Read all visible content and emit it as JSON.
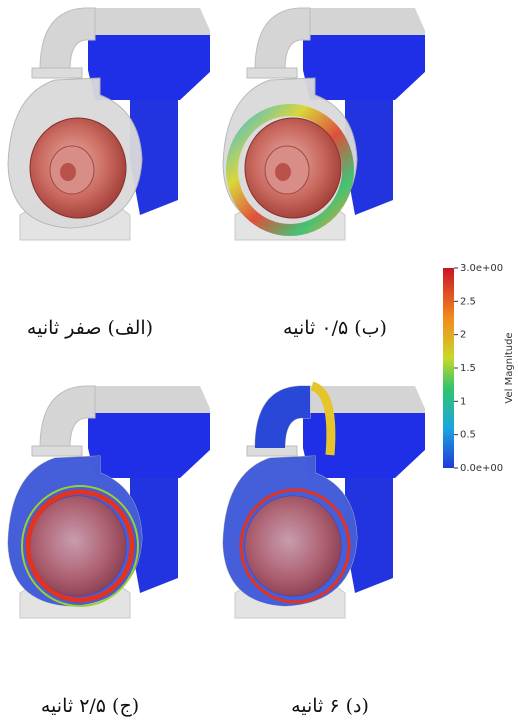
{
  "panels": [
    {
      "caption": "(الف) صفر ثانیه"
    },
    {
      "caption": "(ب) ۰/۵ ثانیه"
    },
    {
      "caption": "(ج) ۲/۵ ثانیه"
    },
    {
      "caption": "(د) ۶ ثانیه"
    }
  ],
  "colorbar": {
    "label": "Vel Magnitude",
    "lim": [
      0,
      3
    ],
    "ticks": [
      {
        "value": 3,
        "label": "3.0e+00"
      },
      2.5,
      2,
      1.5,
      1,
      0.5,
      {
        "value": 0,
        "label": "0.0e+00"
      }
    ]
  }
}
